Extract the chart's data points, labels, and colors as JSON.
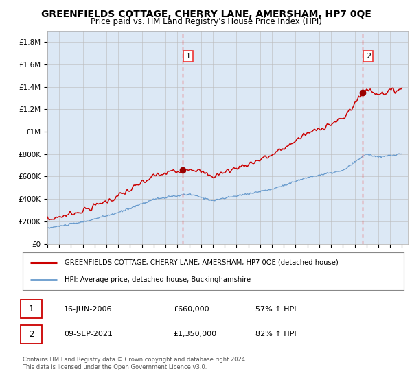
{
  "title": "GREENFIELDS COTTAGE, CHERRY LANE, AMERSHAM, HP7 0QE",
  "subtitle": "Price paid vs. HM Land Registry's House Price Index (HPI)",
  "ylabel_ticks": [
    "£0",
    "£200K",
    "£400K",
    "£600K",
    "£800K",
    "£1M",
    "£1.2M",
    "£1.4M",
    "£1.6M",
    "£1.8M"
  ],
  "ytick_values": [
    0,
    200000,
    400000,
    600000,
    800000,
    1000000,
    1200000,
    1400000,
    1600000,
    1800000
  ],
  "ylim": [
    0,
    1900000
  ],
  "xlim_start": 1995.0,
  "xlim_end": 2025.5,
  "sale1_date_label": "16-JUN-2006",
  "sale1_price_label": "£660,000",
  "sale1_hpi_label": "57% ↑ HPI",
  "sale1_x": 2006.45,
  "sale1_y": 660000,
  "sale2_date_label": "09-SEP-2021",
  "sale2_price_label": "£1,350,000",
  "sale2_hpi_label": "82% ↑ HPI",
  "sale2_x": 2021.69,
  "sale2_y": 1350000,
  "vline1_x": 2006.45,
  "vline2_x": 2021.69,
  "property_line_color": "#cc0000",
  "hpi_line_color": "#6699cc",
  "vline_color": "#ee3333",
  "plot_bg_color": "#dce8f5",
  "legend_label1": "GREENFIELDS COTTAGE, CHERRY LANE, AMERSHAM, HP7 0QE (detached house)",
  "legend_label2": "HPI: Average price, detached house, Buckinghamshire",
  "footer_line1": "Contains HM Land Registry data © Crown copyright and database right 2024.",
  "footer_line2": "This data is licensed under the Open Government Licence v3.0.",
  "title_fontsize": 10,
  "subtitle_fontsize": 8.5,
  "background_color": "#ffffff"
}
